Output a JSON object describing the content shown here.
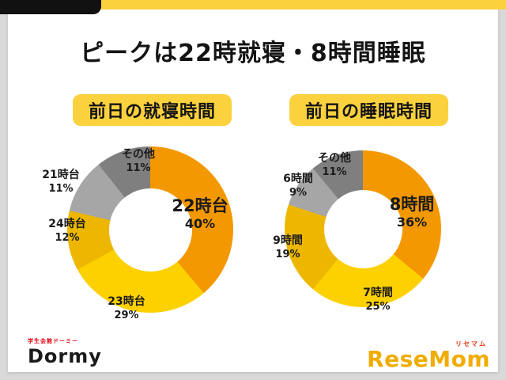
{
  "theme": {
    "accent_yellow": "#FCD13E",
    "top_bar_black": "#111111",
    "card_bg": "#FFFFFF",
    "page_bg": "#D9D9D9"
  },
  "header": {
    "title": "ピークは22時就寝・8時間睡眠"
  },
  "chart_data": [
    {
      "type": "pie",
      "style": "donut",
      "title": "前日の就寝時間",
      "legend_position": "around",
      "segments": [
        {
          "label": "22時台",
          "value": 40,
          "display": "40%",
          "color": "#F39800"
        },
        {
          "label": "23時台",
          "value": 29,
          "display": "29%",
          "color": "#FDD000"
        },
        {
          "label": "24時台",
          "value": 12,
          "display": "12%",
          "color": "#EDB700"
        },
        {
          "label": "21時台",
          "value": 11,
          "display": "11%",
          "color": "#A6A6A6"
        },
        {
          "label": "その他",
          "value": 11,
          "display": "11%",
          "color": "#7F7F7F"
        }
      ]
    },
    {
      "type": "pie",
      "style": "donut",
      "title": "前日の睡眠時間",
      "legend_position": "around",
      "segments": [
        {
          "label": "8時間",
          "value": 36,
          "display": "36%",
          "color": "#F39800"
        },
        {
          "label": "7時間",
          "value": 25,
          "display": "25%",
          "color": "#FDD000"
        },
        {
          "label": "9時間",
          "value": 19,
          "display": "19%",
          "color": "#EDB700"
        },
        {
          "label": "6時間",
          "value": 9,
          "display": "9%",
          "color": "#A6A6A6"
        },
        {
          "label": "その他",
          "value": 11,
          "display": "11%",
          "color": "#7F7F7F"
        }
      ]
    }
  ],
  "footer": {
    "dormy_tagline": "学生会館ドーミー",
    "dormy_logo": "Dormy",
    "resemom_kana": "リセマム",
    "resemom_logo": "ReseMom"
  }
}
